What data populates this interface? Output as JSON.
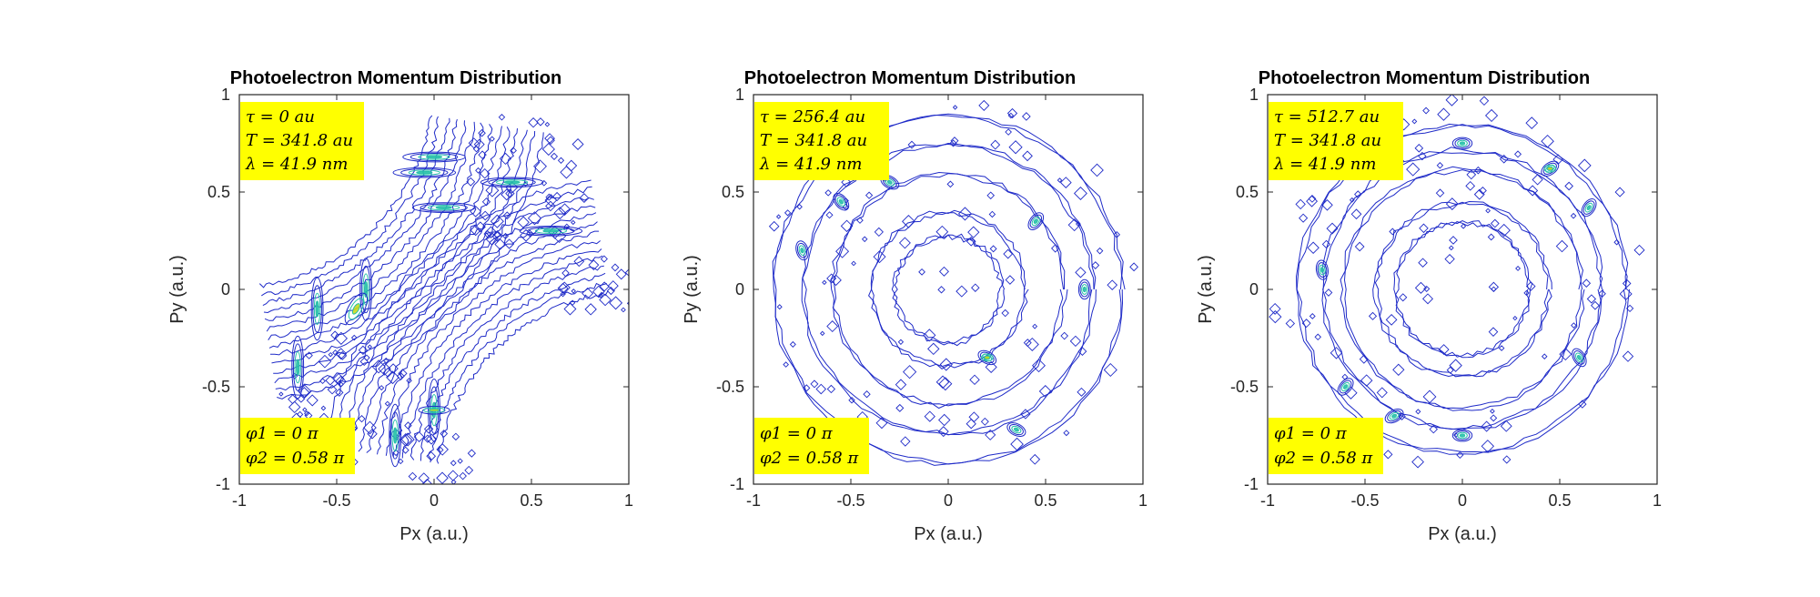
{
  "chart_data": [
    {
      "type": "contour",
      "title": "Photoelectron Momentum Distribution",
      "xlabel": "Px (a.u.)",
      "ylabel": "Py (a.u.)",
      "xlim": [
        -1,
        1
      ],
      "ylim": [
        -1,
        1
      ],
      "xticks": [
        "-1",
        "-0.5",
        "0",
        "0.5",
        "1"
      ],
      "yticks": [
        "-1",
        "-0.5",
        "0",
        "0.5",
        "1"
      ],
      "annotation_top": [
        "τ = 0 au",
        "T = 341.8 au",
        "λ = 41.9 nm"
      ],
      "annotation_bottom": [
        "φ1 = 0 π",
        "φ2 = 0.58 π"
      ],
      "pattern": "diagonal-lobes",
      "grid": false
    },
    {
      "type": "contour",
      "title": "Photoelectron Momentum Distribution",
      "xlabel": "Px (a.u.)",
      "ylabel": "Py (a.u.)",
      "xlim": [
        -1,
        1
      ],
      "ylim": [
        -1,
        1
      ],
      "xticks": [
        "-1",
        "-0.5",
        "0",
        "0.5",
        "1"
      ],
      "yticks": [
        "-1",
        "-0.5",
        "0",
        "0.5",
        "1"
      ],
      "annotation_top": [
        "τ = 256.4 au",
        "T = 341.8 au",
        "λ = 41.9 nm"
      ],
      "annotation_bottom": [
        "φ1 = 0 π",
        "φ2 = 0.58 π"
      ],
      "pattern": "rings-lobed",
      "grid": false
    },
    {
      "type": "contour",
      "title": "Photoelectron Momentum Distribution",
      "xlabel": "Px (a.u.)",
      "ylabel": "Py (a.u.)",
      "xlim": [
        -1,
        1
      ],
      "ylim": [
        -1,
        1
      ],
      "xticks": [
        "-1",
        "-0.5",
        "0",
        "0.5",
        "1"
      ],
      "yticks": [
        "-1",
        "-0.5",
        "0",
        "0.5",
        "1"
      ],
      "annotation_top": [
        "τ = 512.7 au",
        "T = 341.8 au",
        "λ = 41.9 nm"
      ],
      "annotation_bottom": [
        "φ1 = 0 π",
        "φ2 = 0.58 π"
      ],
      "pattern": "rings",
      "grid": false
    }
  ],
  "colors": {
    "contour_line": "#1f2bc8",
    "highlight": "#26c0a8",
    "peak": "#c8d820",
    "annotation_bg": "#ffff00",
    "axes": "#262626"
  }
}
